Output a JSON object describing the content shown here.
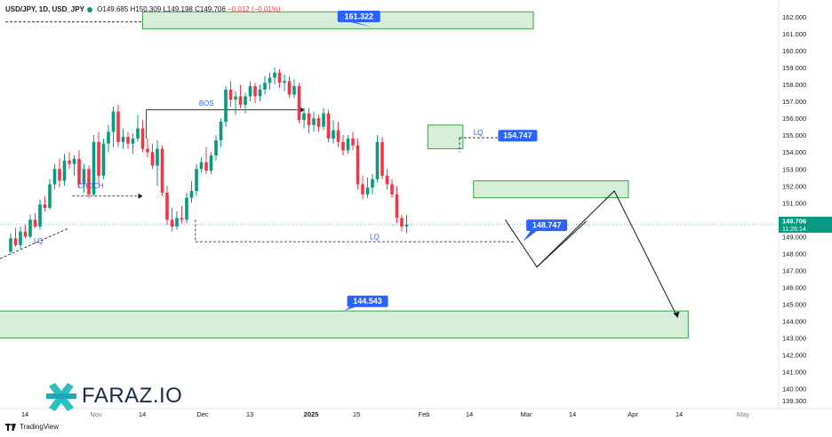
{
  "header": {
    "symbol": "USD/JPY, 1D, USD_JPY",
    "open": "O149.685",
    "high": "H150.309",
    "low": "L149.198",
    "close": "C149.706",
    "change": "−0.012 (−0.01%)"
  },
  "brand": {
    "name": "FARAZ.IO"
  },
  "footer": {
    "platform": "TradingView"
  },
  "colors": {
    "up": "#089981",
    "down": "#f23645",
    "zone_fill": "#d6eed8",
    "zone_stroke": "#3ba34a",
    "label_bg": "#2962ff",
    "annotation": "#2962ff"
  },
  "price_axis": {
    "min": 139.3,
    "max": 162.8,
    "ticks": [
      "162.000",
      "161.000",
      "160.000",
      "159.000",
      "158.000",
      "157.000",
      "156.000",
      "155.000",
      "154.000",
      "153.000",
      "152.000",
      "151.000",
      "150.000",
      "149.000",
      "148.000",
      "147.000",
      "146.000",
      "145.000",
      "144.000",
      "143.000",
      "142.000",
      "141.000",
      "140.000",
      "139.300"
    ],
    "current_price": "149.706",
    "countdown": "11:26:14"
  },
  "time_axis": {
    "labels": [
      "14",
      "Nov",
      "14",
      "Dec",
      "13",
      "2025",
      "15",
      "Feb",
      "14",
      "Mar",
      "14",
      "Apr",
      "14",
      "May"
    ],
    "bold_labels": [
      "2025"
    ]
  },
  "chart_data": {
    "type": "candlestick",
    "x_start": "2024-10-07",
    "interval": "1D",
    "ylim": [
      139.3,
      162.8
    ],
    "ohlc": [
      [
        148.1,
        149.2,
        148.0,
        148.9
      ],
      [
        148.9,
        149.5,
        148.4,
        148.5
      ],
      [
        148.5,
        149.6,
        148.3,
        149.3
      ],
      [
        149.3,
        149.7,
        148.9,
        149.0
      ],
      [
        149.0,
        150.3,
        148.9,
        150.0
      ],
      [
        150.0,
        150.4,
        149.5,
        149.6
      ],
      [
        149.6,
        151.2,
        149.4,
        150.9
      ],
      [
        150.9,
        151.4,
        150.5,
        150.7
      ],
      [
        150.7,
        152.4,
        150.6,
        152.1
      ],
      [
        152.1,
        153.3,
        151.8,
        153.0
      ],
      [
        153.0,
        153.6,
        151.9,
        152.3
      ],
      [
        152.3,
        153.9,
        152.0,
        153.5
      ],
      [
        153.5,
        154.0,
        153.0,
        153.3
      ],
      [
        153.3,
        153.8,
        152.6,
        153.6
      ],
      [
        153.6,
        154.1,
        151.9,
        152.1
      ],
      [
        152.1,
        153.3,
        151.6,
        153.0
      ],
      [
        153.0,
        153.2,
        151.3,
        151.5
      ],
      [
        151.5,
        155.0,
        151.4,
        154.6
      ],
      [
        154.6,
        155.2,
        152.1,
        152.6
      ],
      [
        152.6,
        154.8,
        152.4,
        154.5
      ],
      [
        154.5,
        155.6,
        154.0,
        155.2
      ],
      [
        155.2,
        156.7,
        154.3,
        156.4
      ],
      [
        156.4,
        156.8,
        154.3,
        154.6
      ],
      [
        154.6,
        155.4,
        154.2,
        154.9
      ],
      [
        154.9,
        155.2,
        154.2,
        154.5
      ],
      [
        154.5,
        155.1,
        153.9,
        154.8
      ],
      [
        154.8,
        156.2,
        154.6,
        155.4
      ],
      [
        155.4,
        155.9,
        154.0,
        154.2
      ],
      [
        154.2,
        154.8,
        153.7,
        154.0
      ],
      [
        154.0,
        154.5,
        153.0,
        153.2
      ],
      [
        153.2,
        154.7,
        152.0,
        154.2
      ],
      [
        154.2,
        154.4,
        151.4,
        151.6
      ],
      [
        151.6,
        152.0,
        149.7,
        150.0
      ],
      [
        150.0,
        150.7,
        149.3,
        149.6
      ],
      [
        149.6,
        150.5,
        149.4,
        150.1
      ],
      [
        150.1,
        150.8,
        149.8,
        150.0
      ],
      [
        150.0,
        151.6,
        149.8,
        151.3
      ],
      [
        151.3,
        152.3,
        151.0,
        151.7
      ],
      [
        151.7,
        153.3,
        151.4,
        153.0
      ],
      [
        153.0,
        153.7,
        152.8,
        153.4
      ],
      [
        153.4,
        154.3,
        152.7,
        152.9
      ],
      [
        152.9,
        154.0,
        152.7,
        153.8
      ],
      [
        153.8,
        155.0,
        153.5,
        154.7
      ],
      [
        154.7,
        156.0,
        154.3,
        155.8
      ],
      [
        155.8,
        157.9,
        155.5,
        157.7
      ],
      [
        157.7,
        158.2,
        156.7,
        157.1
      ],
      [
        157.1,
        157.6,
        156.2,
        157.3
      ],
      [
        157.3,
        158.0,
        156.6,
        156.8
      ],
      [
        156.8,
        157.5,
        156.3,
        157.3
      ],
      [
        157.3,
        158.2,
        157.0,
        157.9
      ],
      [
        157.9,
        158.1,
        156.9,
        157.3
      ],
      [
        157.3,
        158.0,
        157.0,
        157.7
      ],
      [
        157.7,
        158.5,
        157.4,
        158.1
      ],
      [
        158.1,
        158.7,
        157.7,
        158.4
      ],
      [
        158.4,
        159.0,
        158.0,
        158.7
      ],
      [
        158.7,
        158.9,
        157.8,
        158.1
      ],
      [
        158.1,
        158.6,
        157.6,
        158.2
      ],
      [
        158.2,
        158.5,
        157.2,
        157.4
      ],
      [
        157.4,
        158.3,
        157.2,
        157.9
      ],
      [
        157.9,
        158.1,
        155.7,
        155.9
      ],
      [
        155.9,
        156.6,
        155.4,
        156.3
      ],
      [
        156.3,
        156.6,
        155.1,
        155.6
      ],
      [
        155.6,
        156.4,
        155.2,
        156.0
      ],
      [
        156.0,
        156.2,
        155.2,
        155.5
      ],
      [
        155.5,
        156.6,
        155.3,
        156.3
      ],
      [
        156.3,
        156.5,
        154.6,
        154.8
      ],
      [
        154.8,
        155.9,
        154.5,
        155.3
      ],
      [
        155.3,
        155.8,
        154.3,
        154.6
      ],
      [
        154.6,
        155.0,
        153.8,
        154.1
      ],
      [
        154.1,
        155.0,
        153.9,
        154.8
      ],
      [
        154.8,
        155.2,
        154.1,
        154.4
      ],
      [
        154.4,
        154.8,
        151.8,
        152.1
      ],
      [
        152.1,
        152.6,
        151.2,
        151.5
      ],
      [
        151.5,
        152.5,
        151.3,
        151.9
      ],
      [
        151.9,
        152.7,
        151.5,
        152.4
      ],
      [
        152.4,
        155.0,
        152.2,
        154.6
      ],
      [
        154.6,
        154.9,
        152.4,
        152.6
      ],
      [
        152.6,
        153.0,
        151.8,
        152.1
      ],
      [
        152.1,
        152.4,
        151.3,
        151.5
      ],
      [
        151.5,
        152.0,
        149.8,
        150.1
      ],
      [
        150.1,
        150.3,
        149.3,
        149.6
      ],
      [
        149.6,
        150.3,
        149.2,
        149.7
      ]
    ],
    "annotations": {
      "zones": [
        {
          "top": 162.3,
          "bottom": 161.3,
          "start": "2024-11-14",
          "end": "2025-03-05"
        },
        {
          "top": 155.6,
          "bottom": 154.2,
          "start": "2025-02-03",
          "end": "2025-02-13"
        },
        {
          "top": 152.3,
          "bottom": 151.3,
          "start": "2025-02-16",
          "end": "2025-04-01"
        },
        {
          "top": 144.6,
          "bottom": 143.0,
          "start": "2024-09-27",
          "end": "2025-04-18"
        }
      ],
      "price_labels": [
        "161.322",
        "154.747",
        "148.747",
        "144.543"
      ],
      "text_labels": [
        "BOS",
        "CHOCH",
        "LQ",
        "LQ",
        "LQ"
      ]
    }
  }
}
